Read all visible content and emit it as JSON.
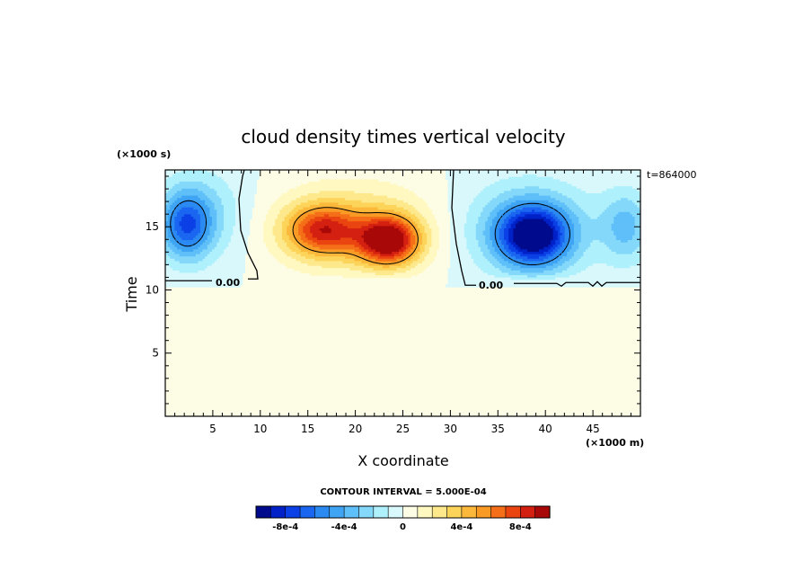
{
  "chart_data": {
    "type": "contour",
    "title": "cloud density times vertical velocity",
    "xlabel": "X coordinate",
    "ylabel": "Time",
    "x_unit": "(×1000 m)",
    "y_unit": "(×1000 s)",
    "time_stamp": "t=864000",
    "xlim": [
      0,
      50
    ],
    "ylim": [
      0,
      19.5
    ],
    "x_ticks": [
      5,
      10,
      15,
      20,
      25,
      30,
      35,
      40,
      45
    ],
    "y_ticks": [
      5,
      10,
      15
    ],
    "contour_interval_text": "CONTOUR INTERVAL = 5.000E-04",
    "contour_label": "0.00",
    "colorbar": {
      "levels": [
        -0.001,
        -0.0009,
        -0.0008,
        -0.0007,
        -0.0006,
        -0.0005,
        -0.0004,
        -0.0003,
        -0.0002,
        -0.0001,
        0,
        0.0001,
        0.0002,
        0.0003,
        0.0004,
        0.0005,
        0.0006,
        0.0007,
        0.0008,
        0.0009,
        0.001
      ],
      "colors": [
        "#000a8c",
        "#0020c8",
        "#0a40e6",
        "#1a66f0",
        "#2a8af2",
        "#3fa4f4",
        "#5fbff8",
        "#84d8fa",
        "#aef0fc",
        "#d8f8fc",
        "#fdfde6",
        "#fff8c0",
        "#fde98c",
        "#fdd45a",
        "#fbb83a",
        "#f99a24",
        "#f46f18",
        "#ea4410",
        "#d42010",
        "#a80808"
      ],
      "tick_values": [
        -0.0008,
        -0.0004,
        0,
        0.0004,
        0.0008
      ],
      "tick_labels": [
        "-8e-4",
        "-4e-4",
        "0",
        "4e-4",
        "8e-4"
      ]
    },
    "features": [
      {
        "name": "positive-core",
        "x": 23.5,
        "y": 14,
        "peak": 0.00095
      },
      {
        "name": "positive-secondary",
        "x": 16.5,
        "y": 14.8,
        "peak": 0.0006
      },
      {
        "name": "negative-core",
        "x": 38.5,
        "y": 14.3,
        "peak": -0.0009
      },
      {
        "name": "negative-left-edge",
        "x": 2,
        "y": 15,
        "peak": -0.00055
      },
      {
        "name": "negative-right-edge",
        "x": 48.5,
        "y": 15,
        "peak": -0.0003
      }
    ],
    "zero_contour_base_y": 10.8
  }
}
